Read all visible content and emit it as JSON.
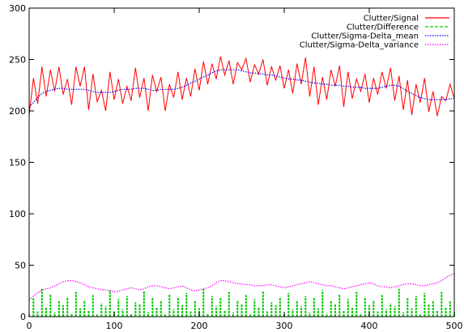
{
  "chart_data": {
    "type": "line",
    "title": "",
    "xlabel": "",
    "ylabel": "",
    "xlim": [
      0,
      500
    ],
    "ylim": [
      0,
      300
    ],
    "xticks": [
      0,
      100,
      200,
      300,
      400,
      500
    ],
    "yticks": [
      0,
      50,
      100,
      150,
      200,
      250,
      300
    ],
    "grid": false,
    "legend_position": "top-right",
    "series": [
      {
        "name": "Clutter/Signal",
        "color": "#ff0000",
        "style": "solid",
        "x": [
          0,
          5,
          10,
          15,
          20,
          25,
          30,
          35,
          40,
          45,
          50,
          55,
          60,
          65,
          70,
          75,
          80,
          85,
          90,
          95,
          100,
          105,
          110,
          115,
          120,
          125,
          130,
          135,
          140,
          145,
          150,
          155,
          160,
          165,
          170,
          175,
          180,
          185,
          190,
          195,
          200,
          205,
          210,
          215,
          220,
          225,
          230,
          235,
          240,
          245,
          250,
          255,
          260,
          265,
          270,
          275,
          280,
          285,
          290,
          295,
          300,
          305,
          310,
          315,
          320,
          325,
          330,
          335,
          340,
          345,
          350,
          355,
          360,
          365,
          370,
          375,
          380,
          385,
          390,
          395,
          400,
          405,
          410,
          415,
          420,
          425,
          430,
          435,
          440,
          445,
          450,
          455,
          460,
          465,
          470,
          475,
          480,
          485,
          490,
          495,
          500
        ],
        "values": [
          196,
          232,
          207,
          243,
          214,
          240,
          219,
          243,
          216,
          231,
          206,
          243,
          224,
          243,
          201,
          236,
          209,
          220,
          200,
          238,
          211,
          231,
          207,
          224,
          210,
          242,
          213,
          232,
          200,
          235,
          219,
          233,
          200,
          226,
          213,
          238,
          211,
          232,
          214,
          241,
          220,
          248,
          226,
          246,
          231,
          253,
          235,
          249,
          226,
          247,
          240,
          251,
          228,
          245,
          236,
          250,
          225,
          243,
          230,
          244,
          222,
          240,
          217,
          246,
          226,
          252,
          214,
          243,
          206,
          233,
          211,
          240,
          224,
          244,
          204,
          238,
          212,
          231,
          219,
          236,
          208,
          232,
          216,
          238,
          222,
          242,
          210,
          234,
          201,
          230,
          196,
          226,
          208,
          232,
          199,
          219,
          195,
          214,
          210,
          226,
          212
        ]
      },
      {
        "name": "Clutter/Difference",
        "color": "#00cc00",
        "style": "dashed",
        "x": [
          0,
          5,
          10,
          15,
          20,
          25,
          30,
          35,
          40,
          45,
          50,
          55,
          60,
          65,
          70,
          75,
          80,
          85,
          90,
          95,
          100,
          105,
          110,
          115,
          120,
          125,
          130,
          135,
          140,
          145,
          150,
          155,
          160,
          165,
          170,
          175,
          180,
          185,
          190,
          195,
          200,
          205,
          210,
          215,
          220,
          225,
          230,
          235,
          240,
          245,
          250,
          255,
          260,
          265,
          270,
          275,
          280,
          285,
          290,
          295,
          300,
          305,
          310,
          315,
          320,
          325,
          330,
          335,
          340,
          345,
          350,
          355,
          360,
          365,
          370,
          375,
          380,
          385,
          390,
          395,
          400,
          405,
          410,
          415,
          420,
          425,
          430,
          435,
          440,
          445,
          450,
          455,
          460,
          465,
          470,
          475,
          480,
          485,
          490,
          495,
          500
        ],
        "values": [
          2,
          18,
          5,
          27,
          9,
          22,
          4,
          15,
          11,
          19,
          3,
          24,
          8,
          16,
          6,
          21,
          2,
          13,
          10,
          26,
          5,
          17,
          7,
          20,
          3,
          14,
          12,
          25,
          4,
          18,
          9,
          16,
          2,
          22,
          7,
          19,
          11,
          23,
          5,
          15,
          8,
          27,
          3,
          20,
          10,
          18,
          6,
          24,
          4,
          16,
          12,
          21,
          2,
          17,
          9,
          25,
          5,
          14,
          11,
          19,
          3,
          23,
          7,
          16,
          10,
          20,
          4,
          18,
          8,
          26,
          2,
          15,
          12,
          22,
          6,
          17,
          9,
          24,
          3,
          19,
          11,
          16,
          5,
          21,
          7,
          13,
          10,
          27,
          4,
          18,
          8,
          20,
          2,
          23,
          12,
          16,
          6,
          24,
          9,
          15,
          4
        ]
      },
      {
        "name": "Clutter/Sigma-Delta_mean",
        "color": "#0000ff",
        "style": "dotted",
        "x": [
          0,
          5,
          10,
          15,
          20,
          25,
          30,
          35,
          40,
          45,
          50,
          55,
          60,
          65,
          70,
          75,
          80,
          85,
          90,
          95,
          100,
          105,
          110,
          115,
          120,
          125,
          130,
          135,
          140,
          145,
          150,
          155,
          160,
          165,
          170,
          175,
          180,
          185,
          190,
          195,
          200,
          205,
          210,
          215,
          220,
          225,
          230,
          235,
          240,
          245,
          250,
          255,
          260,
          265,
          270,
          275,
          280,
          285,
          290,
          295,
          300,
          305,
          310,
          315,
          320,
          325,
          330,
          335,
          340,
          345,
          350,
          355,
          360,
          365,
          370,
          375,
          380,
          385,
          390,
          395,
          400,
          405,
          410,
          415,
          420,
          425,
          430,
          435,
          440,
          445,
          450,
          455,
          460,
          465,
          470,
          475,
          480,
          485,
          490,
          495,
          500
        ],
        "values": [
          204,
          208,
          213,
          217,
          219,
          220,
          221,
          222,
          222,
          221,
          221,
          221,
          221,
          221,
          220,
          219,
          218,
          218,
          218,
          218,
          219,
          220,
          221,
          221,
          221,
          222,
          222,
          222,
          221,
          220,
          220,
          221,
          221,
          221,
          221,
          222,
          223,
          225,
          227,
          229,
          231,
          233,
          235,
          237,
          239,
          240,
          240,
          240,
          240,
          240,
          239,
          238,
          237,
          237,
          236,
          236,
          235,
          235,
          234,
          233,
          232,
          231,
          231,
          230,
          230,
          229,
          228,
          227,
          227,
          226,
          226,
          225,
          225,
          225,
          224,
          224,
          223,
          223,
          223,
          222,
          222,
          222,
          222,
          223,
          224,
          225,
          225,
          224,
          222,
          219,
          217,
          215,
          213,
          212,
          211,
          211,
          211,
          211,
          211,
          212,
          212
        ]
      },
      {
        "name": "Clutter/Sigma-Delta_variance",
        "color": "#ff00ff",
        "style": "dotted",
        "x": [
          0,
          5,
          10,
          15,
          20,
          25,
          30,
          35,
          40,
          45,
          50,
          55,
          60,
          65,
          70,
          75,
          80,
          85,
          90,
          95,
          100,
          105,
          110,
          115,
          120,
          125,
          130,
          135,
          140,
          145,
          150,
          155,
          160,
          165,
          170,
          175,
          180,
          185,
          190,
          195,
          200,
          205,
          210,
          215,
          220,
          225,
          230,
          235,
          240,
          245,
          250,
          255,
          260,
          265,
          270,
          275,
          280,
          285,
          290,
          295,
          300,
          305,
          310,
          315,
          320,
          325,
          330,
          335,
          340,
          345,
          350,
          355,
          360,
          365,
          370,
          375,
          380,
          385,
          390,
          395,
          400,
          405,
          410,
          415,
          420,
          425,
          430,
          435,
          440,
          445,
          450,
          455,
          460,
          465,
          470,
          475,
          480,
          485,
          490,
          495,
          500
        ],
        "values": [
          16,
          20,
          23,
          26,
          27,
          28,
          30,
          32,
          34,
          35,
          35,
          34,
          33,
          31,
          29,
          28,
          27,
          26,
          26,
          25,
          24,
          25,
          26,
          27,
          28,
          27,
          26,
          27,
          29,
          30,
          30,
          29,
          28,
          27,
          28,
          29,
          30,
          28,
          26,
          25,
          26,
          27,
          28,
          30,
          33,
          35,
          35,
          34,
          33,
          32,
          32,
          31,
          31,
          30,
          30,
          30,
          31,
          31,
          30,
          29,
          28,
          29,
          30,
          31,
          32,
          33,
          34,
          33,
          32,
          31,
          30,
          30,
          29,
          28,
          27,
          28,
          29,
          30,
          31,
          32,
          33,
          32,
          30,
          29,
          29,
          28,
          29,
          30,
          31,
          32,
          32,
          31,
          30,
          30,
          31,
          32,
          33,
          35,
          38,
          40,
          42
        ]
      }
    ]
  }
}
